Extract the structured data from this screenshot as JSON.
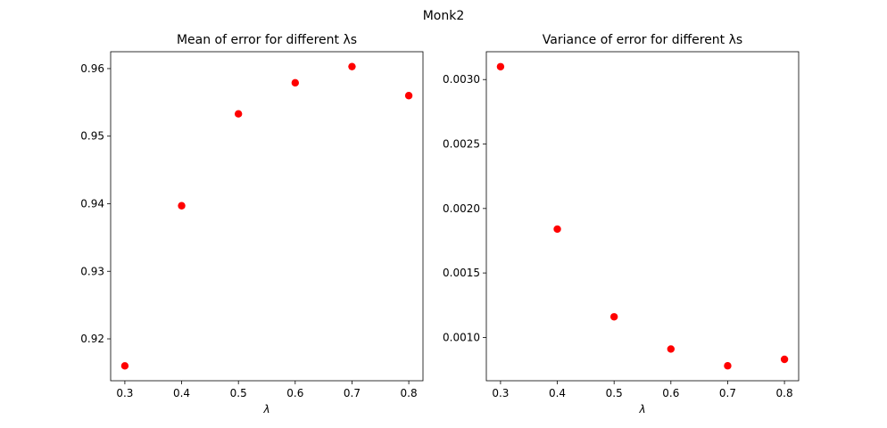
{
  "figure": {
    "suptitle": "Monk2"
  },
  "chart_data": [
    {
      "type": "scatter",
      "title": "Mean of error for different λs",
      "xlabel": "λ",
      "ylabel": "",
      "xlim": [
        0.275,
        0.825
      ],
      "ylim": [
        0.9138,
        0.9625
      ],
      "xticks": [
        0.3,
        0.4,
        0.5,
        0.6,
        0.7,
        0.8
      ],
      "xtick_labels": [
        "0.3",
        "0.4",
        "0.5",
        "0.6",
        "0.7",
        "0.8"
      ],
      "yticks": [
        0.92,
        0.93,
        0.94,
        0.95,
        0.96
      ],
      "ytick_labels": [
        "0.92",
        "0.93",
        "0.94",
        "0.95",
        "0.96"
      ],
      "grid": false,
      "marker_color": "#ff0000",
      "x": [
        0.3,
        0.4,
        0.5,
        0.6,
        0.7,
        0.8
      ],
      "y": [
        0.916,
        0.9397,
        0.9533,
        0.9579,
        0.9603,
        0.956
      ]
    },
    {
      "type": "scatter",
      "title": "Variance of error for different λs",
      "xlabel": "λ",
      "ylabel": "",
      "xlim": [
        0.275,
        0.825
      ],
      "ylim": [
        0.000664,
        0.003216
      ],
      "xticks": [
        0.3,
        0.4,
        0.5,
        0.6,
        0.7,
        0.8
      ],
      "xtick_labels": [
        "0.3",
        "0.4",
        "0.5",
        "0.6",
        "0.7",
        "0.8"
      ],
      "yticks": [
        0.001,
        0.0015,
        0.002,
        0.0025,
        0.003
      ],
      "ytick_labels": [
        "0.0010",
        "0.0015",
        "0.0020",
        "0.0025",
        "0.0030"
      ],
      "grid": false,
      "marker_color": "#ff0000",
      "x": [
        0.3,
        0.4,
        0.5,
        0.6,
        0.7,
        0.8
      ],
      "y": [
        0.0031,
        0.00184,
        0.00116,
        0.00091,
        0.00078,
        0.00083
      ]
    }
  ]
}
